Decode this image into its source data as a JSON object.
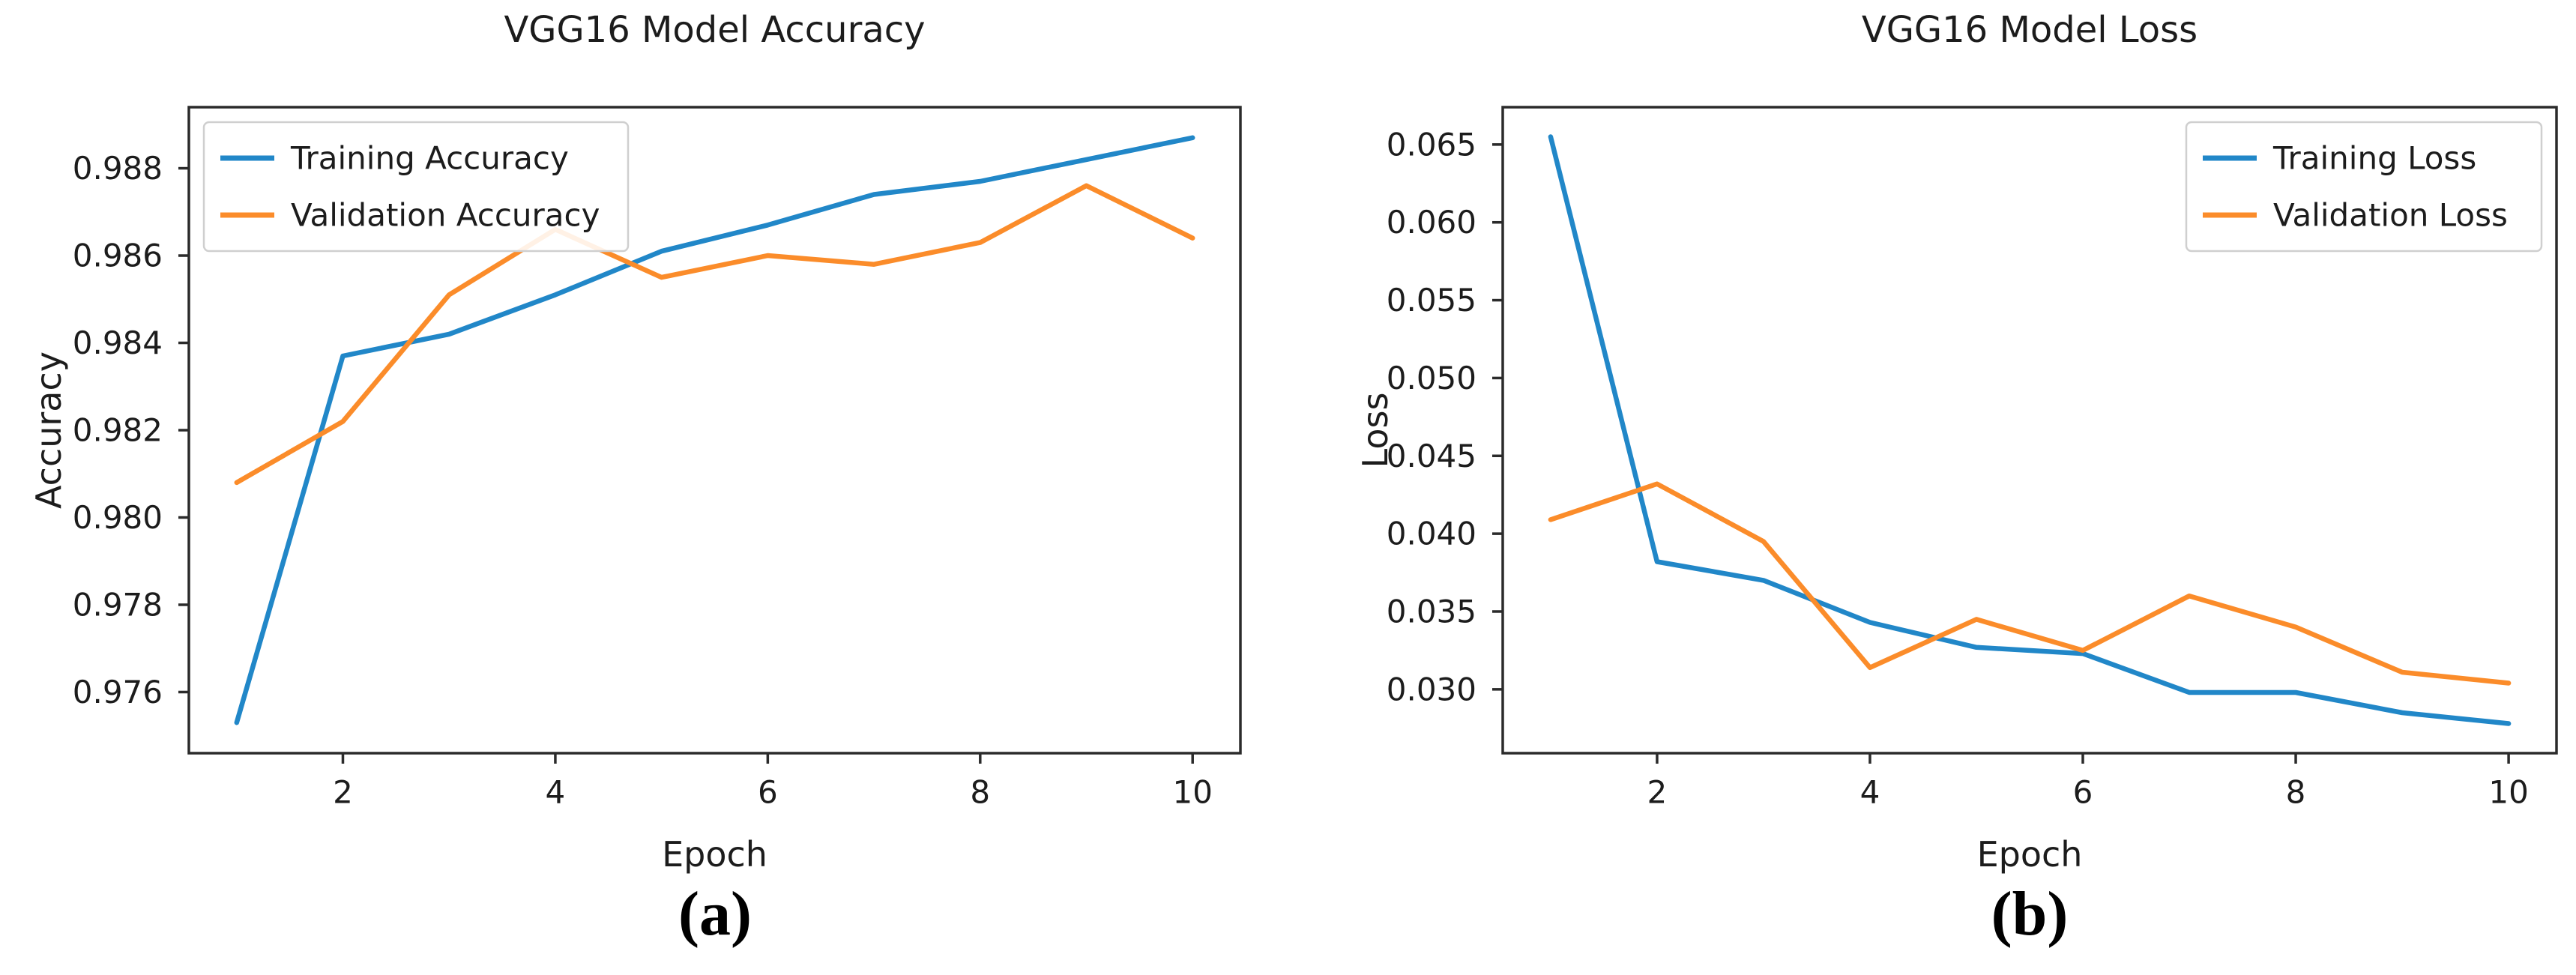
{
  "figure_captions": [
    "(a)",
    "(b)"
  ],
  "style": {
    "text_color": "#1c1c1c",
    "spine_color": "#2b2b2b",
    "legend_border_color": "#cfcfcf",
    "training_color": "#2187c8",
    "validation_color": "#fb8c2a"
  },
  "chart_data": [
    {
      "type": "line",
      "title": "VGG16 Model Accuracy",
      "xlabel": "Epoch",
      "ylabel": "Accuracy",
      "x": [
        1,
        2,
        3,
        4,
        5,
        6,
        7,
        8,
        9,
        10
      ],
      "xlim": [
        0.55,
        10.45
      ],
      "ylim": [
        0.9746,
        0.9894
      ],
      "xticks": [
        2,
        4,
        6,
        8,
        10
      ],
      "xtick_labels": [
        "2",
        "4",
        "6",
        "8",
        "10"
      ],
      "yticks": [
        0.976,
        0.978,
        0.98,
        0.982,
        0.984,
        0.986,
        0.988
      ],
      "ytick_labels": [
        "0.976",
        "0.978",
        "0.980",
        "0.982",
        "0.984",
        "0.986",
        "0.988"
      ],
      "grid": false,
      "legend_position": "upper-left",
      "series": [
        {
          "name": "Training Accuracy",
          "color": "#2187c8",
          "values": [
            0.9753,
            0.9837,
            0.9842,
            0.9851,
            0.9861,
            0.9867,
            0.9874,
            0.9877,
            0.9882,
            0.9887
          ]
        },
        {
          "name": "Validation Accuracy",
          "color": "#fb8c2a",
          "values": [
            0.9808,
            0.9822,
            0.9851,
            0.9866,
            0.9855,
            0.986,
            0.9858,
            0.9863,
            0.9876,
            0.9864
          ]
        }
      ]
    },
    {
      "type": "line",
      "title": "VGG16 Model Loss",
      "xlabel": "Epoch",
      "ylabel": "Loss",
      "x": [
        1,
        2,
        3,
        4,
        5,
        6,
        7,
        8,
        9,
        10
      ],
      "xlim": [
        0.55,
        10.45
      ],
      "ylim": [
        0.0259,
        0.0674
      ],
      "xticks": [
        2,
        4,
        6,
        8,
        10
      ],
      "xtick_labels": [
        "2",
        "4",
        "6",
        "8",
        "10"
      ],
      "yticks": [
        0.03,
        0.035,
        0.04,
        0.045,
        0.05,
        0.055,
        0.06,
        0.065
      ],
      "ytick_labels": [
        "0.030",
        "0.035",
        "0.040",
        "0.045",
        "0.050",
        "0.055",
        "0.060",
        "0.065"
      ],
      "grid": false,
      "legend_position": "upper-right",
      "series": [
        {
          "name": "Training Loss",
          "color": "#2187c8",
          "values": [
            0.0655,
            0.0382,
            0.037,
            0.0343,
            0.0327,
            0.0323,
            0.0298,
            0.0298,
            0.0285,
            0.0278
          ]
        },
        {
          "name": "Validation Loss",
          "color": "#fb8c2a",
          "values": [
            0.0409,
            0.0432,
            0.0395,
            0.0314,
            0.0345,
            0.0325,
            0.036,
            0.034,
            0.0311,
            0.0304
          ]
        }
      ]
    }
  ]
}
